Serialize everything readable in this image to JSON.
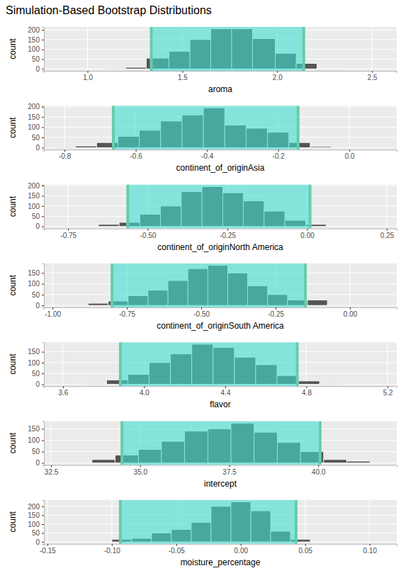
{
  "title": "Simulation-Based Bootstrap Distributions",
  "chart_data": [
    {
      "type": "histogram",
      "x_label": "aroma",
      "y_label": "count",
      "color": "#555555",
      "grid": true,
      "xlim": [
        0.77,
        2.63
      ],
      "xticks": [
        {
          "value": 1,
          "label": "1.0"
        },
        1.5,
        {
          "value": 2,
          "label": "2.0"
        },
        2.5
      ],
      "ylim": [
        -10,
        215
      ],
      "yticks": [
        0,
        50,
        100,
        150,
        200
      ],
      "bins": [
        1.09,
        1.2,
        1.31,
        1.43,
        1.54,
        1.65,
        1.76,
        1.87,
        1.99,
        2.1,
        2.21,
        2.32
      ],
      "counts": [
        2,
        8,
        55,
        90,
        150,
        205,
        205,
        155,
        80,
        28,
        3
      ],
      "ci": [
        1.336,
        2.14
      ]
    },
    {
      "type": "histogram",
      "x_label": "continent_of_originAsia",
      "y_label": "count",
      "color": "#555555",
      "grid": true,
      "xlim": [
        -0.858,
        0.133
      ],
      "xticks": [
        -0.8,
        -0.6,
        -0.4,
        -0.2,
        {
          "value": 0,
          "label": "0.0"
        }
      ],
      "ylim": [
        -10,
        205
      ],
      "yticks": [
        0,
        50,
        100,
        150,
        200
      ],
      "bins": [
        -0.83,
        -0.77,
        -0.71,
        -0.65,
        -0.59,
        -0.53,
        -0.47,
        -0.41,
        -0.35,
        -0.29,
        -0.23,
        -0.17,
        -0.11,
        -0.05
      ],
      "counts": [
        2,
        8,
        25,
        55,
        85,
        130,
        160,
        195,
        110,
        95,
        75,
        25,
        5
      ],
      "ci": [
        -0.663,
        -0.144
      ]
    },
    {
      "type": "histogram",
      "x_label": "continent_of_originNorth America",
      "y_label": "count",
      "color": "#555555",
      "grid": true,
      "xlim": [
        -0.826,
        0.281
      ],
      "xticks": [
        -0.75,
        {
          "value": -0.5,
          "label": "-0.50"
        },
        -0.25,
        {
          "value": 0,
          "label": "0.00"
        },
        0.25
      ],
      "ylim": [
        -10,
        205
      ],
      "yticks": [
        0,
        50,
        100,
        150,
        200
      ],
      "bins": [
        -0.72,
        -0.655,
        -0.59,
        -0.525,
        -0.46,
        -0.395,
        -0.33,
        -0.265,
        -0.2,
        -0.135,
        -0.07,
        -0.005,
        0.06
      ],
      "counts": [
        3,
        10,
        20,
        60,
        100,
        170,
        195,
        165,
        125,
        75,
        30,
        10
      ],
      "ci": [
        -0.563,
        0.009
      ]
    },
    {
      "type": "histogram",
      "x_label": "continent_of_originSouth America",
      "y_label": "count",
      "color": "#555555",
      "grid": true,
      "xlim": [
        -1.029,
        0.157
      ],
      "xticks": [
        {
          "value": -1,
          "label": "-1.00"
        },
        -0.75,
        {
          "value": -0.5,
          "label": "-0.50"
        },
        -0.25,
        {
          "value": 0,
          "label": "0.00"
        }
      ],
      "ylim": [
        -9,
        194
      ],
      "yticks": [
        0,
        50,
        100,
        150
      ],
      "bins": [
        -0.947,
        -0.88,
        -0.813,
        -0.746,
        -0.679,
        -0.612,
        -0.545,
        -0.478,
        -0.411,
        -0.344,
        -0.277,
        -0.21,
        -0.143,
        -0.076,
        -0.009
      ],
      "counts": [
        3,
        10,
        20,
        45,
        70,
        115,
        170,
        185,
        150,
        90,
        50,
        25,
        25,
        3
      ],
      "ci": [
        -0.8,
        -0.15
      ]
    },
    {
      "type": "histogram",
      "x_label": "flavor",
      "y_label": "count",
      "color": "#555555",
      "grid": true,
      "xlim": [
        3.506,
        5.245
      ],
      "xticks": [
        3.6,
        {
          "value": 4,
          "label": "4.0"
        },
        4.4,
        4.8,
        5.2
      ],
      "ylim": [
        -9,
        194
      ],
      "yticks": [
        0,
        50,
        100,
        150
      ],
      "bins": [
        3.71,
        3.815,
        3.92,
        4.025,
        4.13,
        4.235,
        4.34,
        4.445,
        4.55,
        4.655,
        4.76,
        4.865,
        4.97
      ],
      "counts": [
        3,
        20,
        45,
        100,
        140,
        185,
        170,
        125,
        90,
        40,
        15,
        3
      ],
      "ci": [
        3.883,
        4.755
      ]
    },
    {
      "type": "histogram",
      "x_label": "intercept",
      "y_label": "count",
      "color": "#555555",
      "grid": true,
      "xlim": [
        32.3,
        42.2
      ],
      "xticks": [
        32.5,
        {
          "value": 35,
          "label": "35.0"
        },
        37.5,
        {
          "value": 40,
          "label": "40.0"
        }
      ],
      "ylim": [
        -9,
        184
      ],
      "yticks": [
        0,
        50,
        100,
        150
      ],
      "bins": [
        33.65,
        34.3,
        34.95,
        35.6,
        36.25,
        36.9,
        37.55,
        38.2,
        38.85,
        39.5,
        40.15,
        40.8,
        41.45
      ],
      "counts": [
        15,
        35,
        60,
        95,
        140,
        150,
        175,
        135,
        90,
        50,
        15,
        8
      ],
      "ci": [
        34.49,
        40.05
      ]
    },
    {
      "type": "histogram",
      "x_label": "moisture_percentage",
      "y_label": "count",
      "color": "#555555",
      "grid": true,
      "xlim": [
        -0.1527,
        0.121
      ],
      "xticks": [
        -0.15,
        {
          "value": -0.1,
          "label": "-0.10"
        },
        -0.05,
        {
          "value": 0,
          "label": "0.00"
        },
        0.05,
        {
          "value": 0.1,
          "label": "0.10"
        }
      ],
      "ylim": [
        -11,
        236
      ],
      "yticks": [
        0,
        50,
        100,
        150,
        200
      ],
      "bins": [
        -0.1,
        -0.0846,
        -0.0692,
        -0.0538,
        -0.0384,
        -0.023,
        -0.0076,
        0.0078,
        0.0232,
        0.0386,
        0.054
      ],
      "counts": [
        15,
        20,
        50,
        70,
        110,
        200,
        225,
        175,
        60,
        15
      ],
      "ci": [
        -0.0934,
        0.0429
      ]
    }
  ]
}
